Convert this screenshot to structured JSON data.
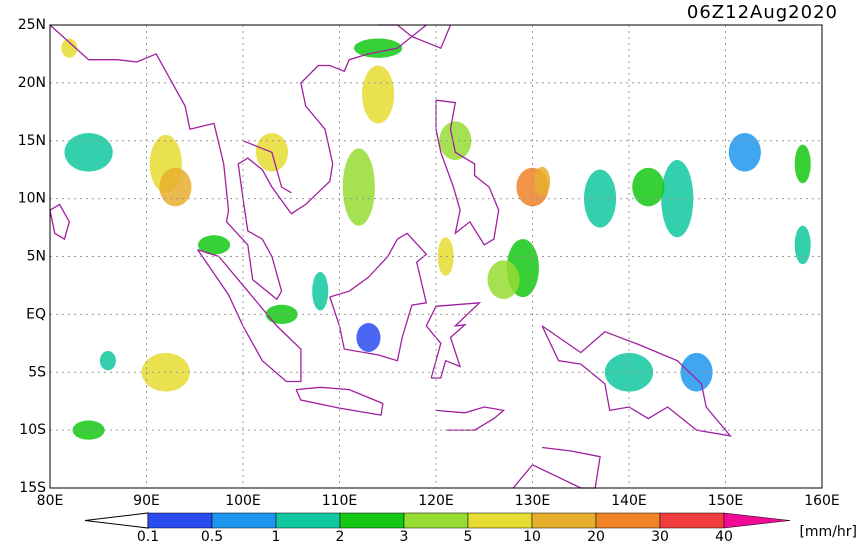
{
  "header": {
    "title": "06Z12Aug2020"
  },
  "map": {
    "lat_labels": [
      "25N",
      "20N",
      "15N",
      "10N",
      "5N",
      "EQ",
      "5S",
      "10S",
      "15S"
    ],
    "lon_labels": [
      "80E",
      "90E",
      "100E",
      "110E",
      "120E",
      "130E",
      "140E",
      "150E",
      "160E"
    ]
  },
  "colorbar": {
    "labels": [
      "0.1",
      "0.5",
      "1",
      "2",
      "3",
      "5",
      "10",
      "20",
      "30",
      "40"
    ],
    "colors": [
      "#2a4bf0",
      "#1e96f0",
      "#10c8a0",
      "#14c814",
      "#96dc32",
      "#e6dc32",
      "#e6af2d",
      "#f08228",
      "#f03c3c",
      "#f00a96"
    ],
    "unit": "[mm/hr]"
  }
}
